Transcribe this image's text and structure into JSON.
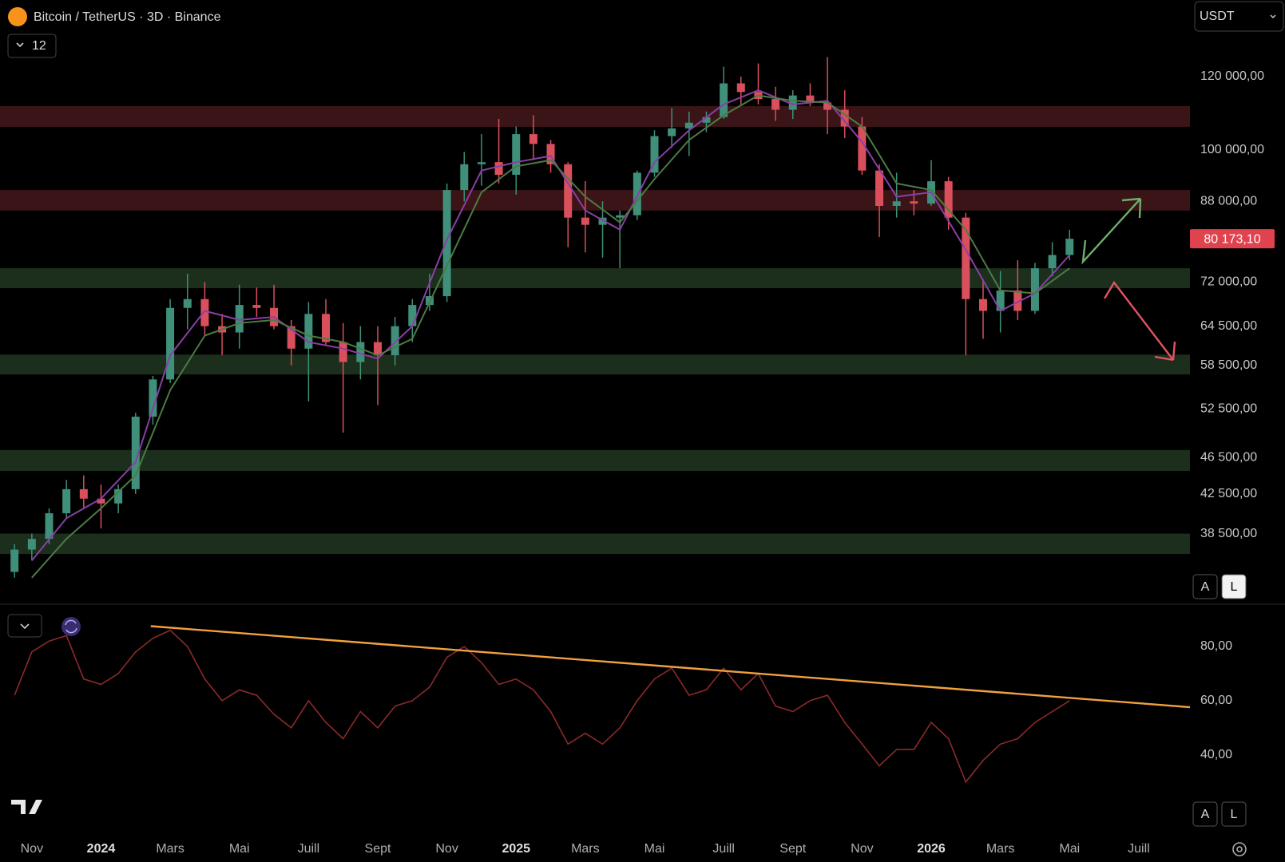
{
  "header": {
    "title": "Bitcoin / TetherUS · 3D · Binance",
    "indicator_count": 12,
    "currency": "USDT"
  },
  "chart_data": [
    {
      "type": "candlestick",
      "log_scale": true,
      "grid": false,
      "xlim": [
        -0.92,
        33.48
      ],
      "xticks": [
        {
          "value": 0,
          "label": "Nov"
        },
        {
          "value": 2,
          "label": "2024"
        },
        {
          "value": 4,
          "label": "Mars"
        },
        {
          "value": 6,
          "label": "Mai"
        },
        {
          "value": 8,
          "label": "Juill"
        },
        {
          "value": 10,
          "label": "Sept"
        },
        {
          "value": 12,
          "label": "Nov"
        },
        {
          "value": 14,
          "label": "2025"
        },
        {
          "value": 16,
          "label": "Mars"
        },
        {
          "value": 18,
          "label": "Mai"
        },
        {
          "value": 20,
          "label": "Juill"
        },
        {
          "value": 22,
          "label": "Sept"
        },
        {
          "value": 24,
          "label": "Nov"
        },
        {
          "value": 26,
          "label": "2026"
        },
        {
          "value": 28,
          "label": "Mars"
        },
        {
          "value": 30,
          "label": "Mai"
        },
        {
          "value": 32,
          "label": "Juill"
        }
      ],
      "ylim": [
        32300,
        145200
      ],
      "yticks": [
        {
          "value": 120000,
          "label": "120 000,00"
        },
        {
          "value": 100000,
          "label": "100 000,00"
        },
        {
          "value": 88000,
          "label": "88 000,00"
        },
        {
          "value": 72000,
          "label": "72 000,00"
        },
        {
          "value": 64500,
          "label": "64 500,00"
        },
        {
          "value": 58500,
          "label": "58 500,00"
        },
        {
          "value": 52500,
          "label": "52 500,00"
        },
        {
          "value": 46500,
          "label": "46 500,00"
        },
        {
          "value": 42500,
          "label": "42 500,00"
        },
        {
          "value": 38500,
          "label": "38 500,00"
        }
      ],
      "up_color": "#3f8f7a",
      "down_color": "#d9505c",
      "x": [
        -0.5,
        0,
        0.5,
        1,
        1.5,
        2,
        2.5,
        3,
        3.5,
        4,
        4.5,
        5,
        5.5,
        6,
        6.5,
        7,
        7.5,
        8,
        8.5,
        9,
        9.5,
        10,
        10.5,
        11,
        11.5,
        12,
        12.5,
        13,
        13.5,
        14,
        14.5,
        15,
        15.5,
        16,
        16.5,
        17,
        17.5,
        18,
        18.5,
        19,
        19.5,
        20,
        20.5,
        21,
        21.5,
        22,
        22.5,
        23,
        23.5,
        24,
        24.5,
        25,
        25.5,
        26,
        26.5,
        27,
        27.5,
        28,
        28.5,
        29,
        29.5,
        30
      ],
      "open": [
        35000,
        37000,
        38000,
        40500,
        43000,
        42000,
        41500,
        43000,
        51500,
        56500,
        67500,
        69000,
        64500,
        63500,
        68000,
        67500,
        64500,
        61000,
        66500,
        62000,
        59000,
        62000,
        60000,
        64500,
        68000,
        69500,
        90500,
        96500,
        97000,
        94000,
        104000,
        101500,
        96500,
        84500,
        83000,
        84500,
        85000,
        94500,
        103500,
        105500,
        107000,
        108500,
        118000,
        115500,
        113500,
        110500,
        114500,
        112500,
        110500,
        106000,
        95000,
        87000,
        88000,
        87500,
        92500,
        84500,
        69000,
        67000,
        70500,
        67000,
        74500,
        77000
      ],
      "high": [
        37500,
        38500,
        41000,
        44000,
        44500,
        43500,
        43500,
        52000,
        57000,
        69000,
        73500,
        72000,
        66500,
        71500,
        71000,
        71500,
        65500,
        68500,
        69000,
        65000,
        64500,
        64500,
        66000,
        69000,
        73500,
        92000,
        99500,
        104000,
        108000,
        106000,
        109000,
        102500,
        97000,
        92500,
        88000,
        86000,
        95000,
        105000,
        111000,
        110000,
        110000,
        123000,
        120000,
        124000,
        117000,
        116000,
        118000,
        126000,
        116000,
        108500,
        96500,
        94500,
        90500,
        97500,
        93500,
        85500,
        72500,
        74000,
        76000,
        75500,
        79500,
        82000
      ],
      "low": [
        34500,
        36000,
        37500,
        40000,
        41000,
        39000,
        40500,
        42500,
        50500,
        56000,
        64000,
        63000,
        60000,
        61000,
        66000,
        64000,
        58500,
        53500,
        61500,
        49500,
        56500,
        53000,
        58500,
        62000,
        67000,
        68500,
        88000,
        91500,
        92000,
        89500,
        97500,
        94500,
        78500,
        77500,
        76500,
        74500,
        84000,
        93500,
        100500,
        98500,
        104500,
        108000,
        112000,
        112000,
        107500,
        108000,
        111500,
        104000,
        103000,
        94000,
        80500,
        84500,
        85000,
        87000,
        82000,
        60000,
        62500,
        63500,
        65500,
        66500,
        73000,
        76000
      ],
      "close": [
        37000,
        38000,
        40500,
        43000,
        42000,
        41500,
        43000,
        51500,
        56500,
        67500,
        69000,
        64500,
        63500,
        68000,
        67500,
        64500,
        61000,
        66500,
        62000,
        59000,
        62000,
        60000,
        64500,
        68000,
        69500,
        90500,
        96500,
        97000,
        94000,
        104000,
        101500,
        96500,
        84500,
        83000,
        84500,
        85000,
        94500,
        103500,
        105500,
        107000,
        108500,
        118000,
        115500,
        113500,
        110500,
        114500,
        112500,
        110500,
        106000,
        95000,
        87000,
        88000,
        87500,
        92500,
        84500,
        69000,
        67000,
        70500,
        67000,
        74500,
        77000,
        80173.1
      ],
      "moving_averages": [
        {
          "color": "#8a3fa6",
          "x": [
            0,
            1,
            2,
            3,
            4,
            5,
            6,
            7,
            8,
            9,
            10,
            11,
            12,
            13,
            14,
            15,
            16,
            17,
            18,
            19,
            20,
            21,
            22,
            23,
            24,
            25,
            26,
            27,
            28,
            29,
            30
          ],
          "values": [
            36000,
            40000,
            42000,
            46000,
            60000,
            67000,
            65500,
            66000,
            62000,
            61000,
            59500,
            64500,
            80000,
            95000,
            97000,
            98500,
            86000,
            82000,
            97000,
            105000,
            112000,
            116000,
            112000,
            113000,
            102000,
            89000,
            90000,
            78000,
            67000,
            70000,
            77000
          ]
        },
        {
          "color": "#4d7a45",
          "x": [
            0,
            1,
            2,
            3,
            4,
            5,
            6,
            7,
            8,
            9,
            10,
            11,
            12,
            13,
            14,
            15,
            16,
            17,
            18,
            19,
            20,
            21,
            22,
            23,
            24,
            25,
            26,
            27,
            28,
            29,
            30
          ],
          "values": [
            34500,
            38000,
            41000,
            44500,
            55000,
            63000,
            65000,
            65500,
            63000,
            62000,
            60000,
            62500,
            75000,
            90000,
            96000,
            97500,
            89000,
            83500,
            93000,
            102500,
            109000,
            114500,
            113000,
            112500,
            106000,
            92000,
            90500,
            82000,
            70500,
            70000,
            74500
          ]
        }
      ],
      "zones": [
        {
          "low": 105900,
          "high": 111500,
          "color": "#3a1417"
        },
        {
          "low": 86000,
          "high": 90500,
          "color": "#3a1417"
        },
        {
          "low": 70900,
          "high": 74500,
          "color": "#1b2f1c"
        },
        {
          "low": 57200,
          "high": 60100,
          "color": "#1b2f1c"
        },
        {
          "low": 45000,
          "high": 47400,
          "color": "#1b2f1c"
        },
        {
          "low": 36600,
          "high": 38500,
          "color": "#1b2f1c"
        }
      ],
      "last_price": {
        "value": 80173.1,
        "label": "80 173,10"
      },
      "scale_buttons": [
        "A",
        "L"
      ]
    },
    {
      "type": "line",
      "color": "#8c2a2a",
      "x": [
        -0.5,
        0,
        0.5,
        1,
        1.5,
        2,
        2.5,
        3,
        3.5,
        4,
        4.5,
        5,
        5.5,
        6,
        6.5,
        7,
        7.5,
        8,
        8.5,
        9,
        9.5,
        10,
        10.5,
        11,
        11.5,
        12,
        12.5,
        13,
        13.5,
        14,
        14.5,
        15,
        15.5,
        16,
        16.5,
        17,
        17.5,
        18,
        18.5,
        19,
        19.5,
        20,
        20.5,
        21,
        21.5,
        22,
        22.5,
        23,
        23.5,
        24,
        24.5,
        25,
        25.5,
        26,
        26.5,
        27,
        27.5,
        28,
        28.5,
        29,
        29.5,
        30
      ],
      "values": [
        62,
        78,
        82,
        84,
        68,
        66,
        70,
        78,
        83,
        86,
        80,
        68,
        60,
        64,
        62,
        55,
        50,
        60,
        52,
        46,
        56,
        50,
        58,
        60,
        65,
        76,
        80,
        74,
        66,
        68,
        64,
        56,
        44,
        48,
        44,
        50,
        60,
        68,
        72,
        62,
        64,
        72,
        64,
        70,
        58,
        56,
        60,
        62,
        52,
        44,
        36,
        42,
        42,
        52,
        46,
        30,
        38,
        44,
        46,
        52,
        56,
        60
      ],
      "ylim": [
        12,
        95
      ],
      "yticks": [
        {
          "value": 80,
          "label": "80,00"
        },
        {
          "value": 60,
          "label": "60,00"
        },
        {
          "value": 40,
          "label": "40,00"
        }
      ],
      "trendline": {
        "color": "#f0a040",
        "x": [
          3.44,
          33.48
        ],
        "values": [
          87.5,
          57.6
        ]
      },
      "scale_buttons": [
        "A",
        "L"
      ]
    }
  ]
}
